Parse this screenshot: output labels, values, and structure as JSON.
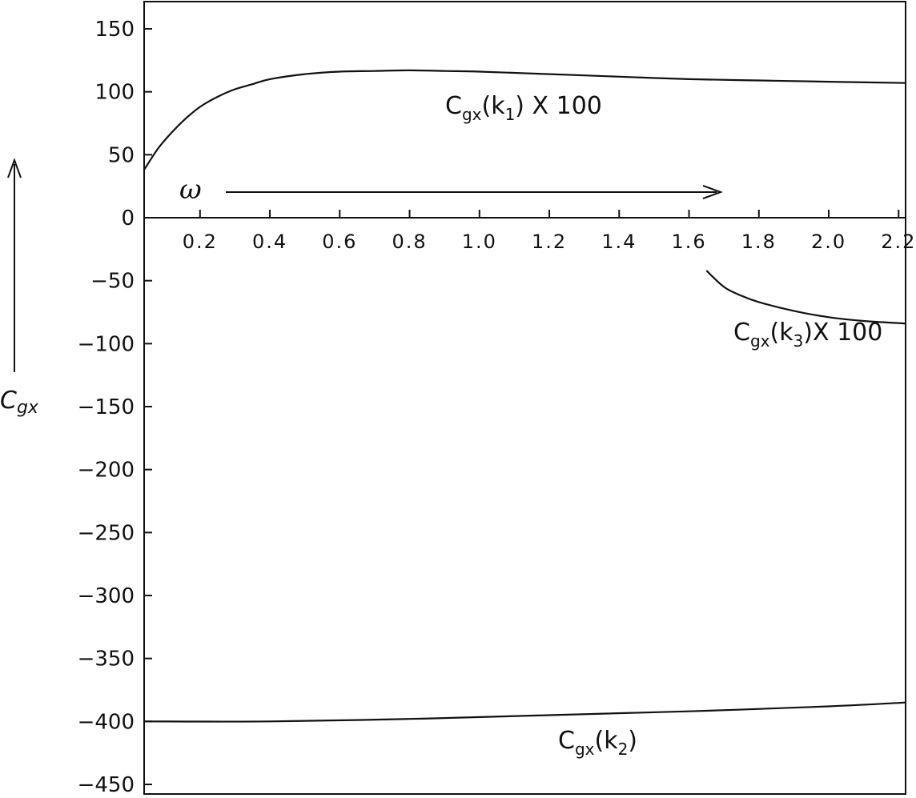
{
  "chart_data": {
    "type": "line",
    "title": "",
    "xlabel": "ω",
    "ylabel": "Cgx",
    "xlim": [
      0.04,
      2.22
    ],
    "ylim": [
      -450,
      170
    ],
    "grid": false,
    "x_ticks": [
      0.2,
      0.4,
      0.6,
      0.8,
      1.0,
      1.2,
      1.4,
      1.6,
      1.8,
      2.0,
      2.2
    ],
    "x_tick_labels": [
      "0.2",
      "0.4",
      "0.6",
      "0.8",
      "1.0",
      "1.2",
      "1.4",
      "1.6",
      "1.8",
      "2.0",
      "2.2"
    ],
    "y_ticks": [
      150,
      100,
      50,
      0,
      -50,
      -100,
      -150,
      -200,
      -250,
      -300,
      -350,
      -400,
      -450
    ],
    "y_tick_labels": [
      "150",
      "100",
      "50",
      "0",
      "-50",
      "-100",
      "-150",
      "-200",
      "-250",
      "-300",
      "-350",
      "-400",
      "-450"
    ],
    "series": [
      {
        "name": "Cgx(k1) X 100",
        "label_main": "C",
        "label_sub": "gx",
        "label_arg": "(k",
        "label_arg_sub": "1",
        "label_tail": ") X 100",
        "x": [
          0.04,
          0.08,
          0.12,
          0.16,
          0.2,
          0.25,
          0.3,
          0.35,
          0.4,
          0.5,
          0.6,
          0.7,
          0.8,
          0.9,
          1.0,
          1.2,
          1.4,
          1.6,
          1.8,
          2.0,
          2.22
        ],
        "y": [
          38,
          55,
          68,
          79,
          88,
          96,
          102,
          106,
          110,
          114,
          116,
          116.5,
          117,
          116.5,
          116,
          114,
          112,
          110,
          109,
          108,
          107
        ]
      },
      {
        "name": "Cgx(k3) X 100",
        "label_main": "C",
        "label_sub": "gx",
        "label_arg": "(k",
        "label_arg_sub": "3",
        "label_tail": ")X 100",
        "x": [
          1.65,
          1.7,
          1.75,
          1.8,
          1.9,
          2.0,
          2.1,
          2.22
        ],
        "y": [
          -42,
          -55,
          -62,
          -67,
          -74,
          -79,
          -82,
          -84
        ]
      },
      {
        "name": "Cgx(k2)",
        "label_main": "C",
        "label_sub": "gx",
        "label_arg": "(k",
        "label_arg_sub": "2",
        "label_tail": ")",
        "x": [
          0.04,
          0.4,
          0.8,
          1.2,
          1.6,
          2.0,
          2.22
        ],
        "y": [
          -400,
          -400,
          -398,
          -395,
          -392,
          -388,
          -385
        ]
      }
    ]
  }
}
